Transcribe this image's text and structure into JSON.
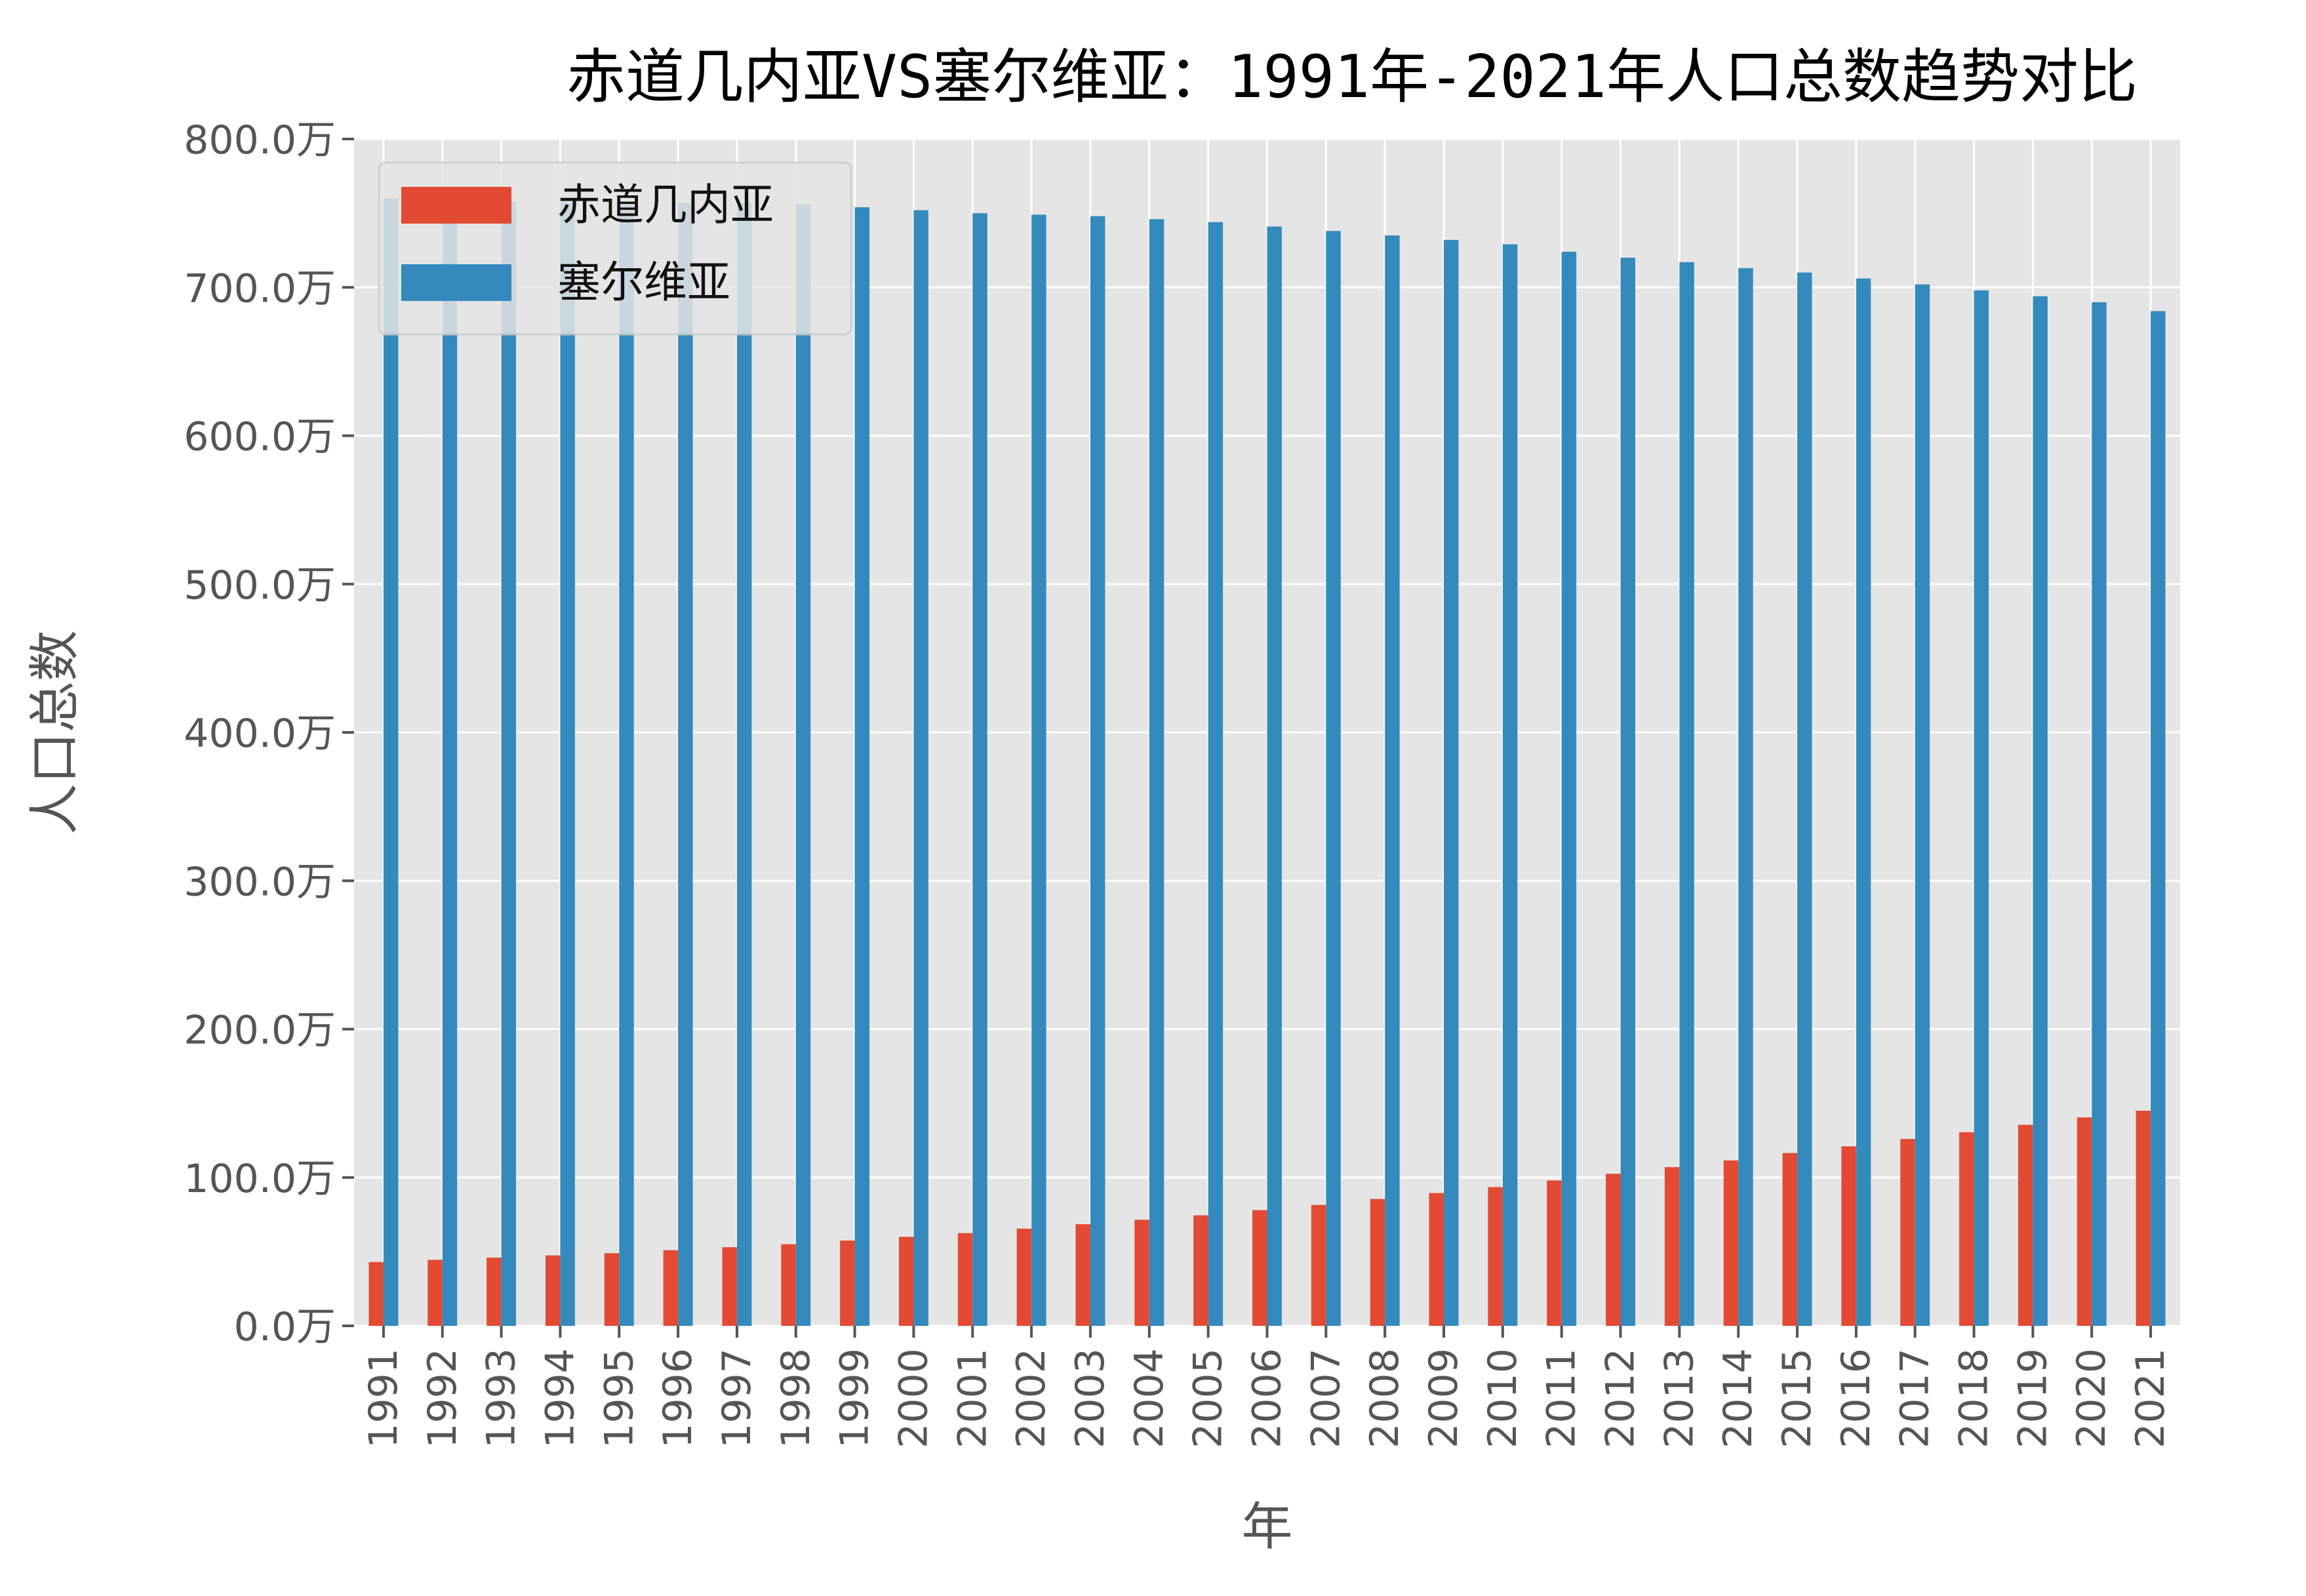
{
  "chart_data": {
    "type": "bar",
    "title": "赤道几内亚VS塞尔维亚：1991年-2021年人口总数趋势对比",
    "xlabel": "年",
    "ylabel": "人口总数",
    "ylim": [
      0,
      8000000
    ],
    "yticks": [
      0,
      1000000,
      2000000,
      3000000,
      4000000,
      5000000,
      6000000,
      7000000,
      8000000
    ],
    "ytick_labels": [
      "0.0万",
      "100.0万",
      "200.0万",
      "300.0万",
      "400.0万",
      "500.0万",
      "600.0万",
      "700.0万",
      "800.0万"
    ],
    "grid": true,
    "legend_position": "top-left",
    "categories": [
      "1991",
      "1992",
      "1993",
      "1994",
      "1995",
      "1996",
      "1997",
      "1998",
      "1999",
      "2000",
      "2001",
      "2002",
      "2003",
      "2004",
      "2005",
      "2006",
      "2007",
      "2008",
      "2009",
      "2010",
      "2011",
      "2012",
      "2013",
      "2014",
      "2015",
      "2016",
      "2017",
      "2018",
      "2019",
      "2020",
      "2021"
    ],
    "series": [
      {
        "name": "赤道几内亚",
        "color": "#E24A33",
        "values": [
          430000,
          445000,
          460000,
          475000,
          490000,
          510000,
          530000,
          550000,
          575000,
          600000,
          625000,
          655000,
          685000,
          715000,
          745000,
          780000,
          815000,
          855000,
          895000,
          935000,
          980000,
          1025000,
          1070000,
          1115000,
          1165000,
          1210000,
          1260000,
          1305000,
          1355000,
          1405000,
          1450000
        ]
      },
      {
        "name": "塞尔维亚",
        "color": "#348ABD",
        "values": [
          7600000,
          7590000,
          7580000,
          7570000,
          7570000,
          7570000,
          7570000,
          7560000,
          7540000,
          7520000,
          7500000,
          7490000,
          7480000,
          7460000,
          7440000,
          7410000,
          7380000,
          7350000,
          7320000,
          7290000,
          7240000,
          7200000,
          7170000,
          7130000,
          7100000,
          7060000,
          7020000,
          6980000,
          6940000,
          6900000,
          6840000
        ]
      }
    ]
  },
  "colors": {
    "plot_background": "#E5E5E5",
    "grid": "#FFFFFF",
    "tick_text": "#555555"
  }
}
